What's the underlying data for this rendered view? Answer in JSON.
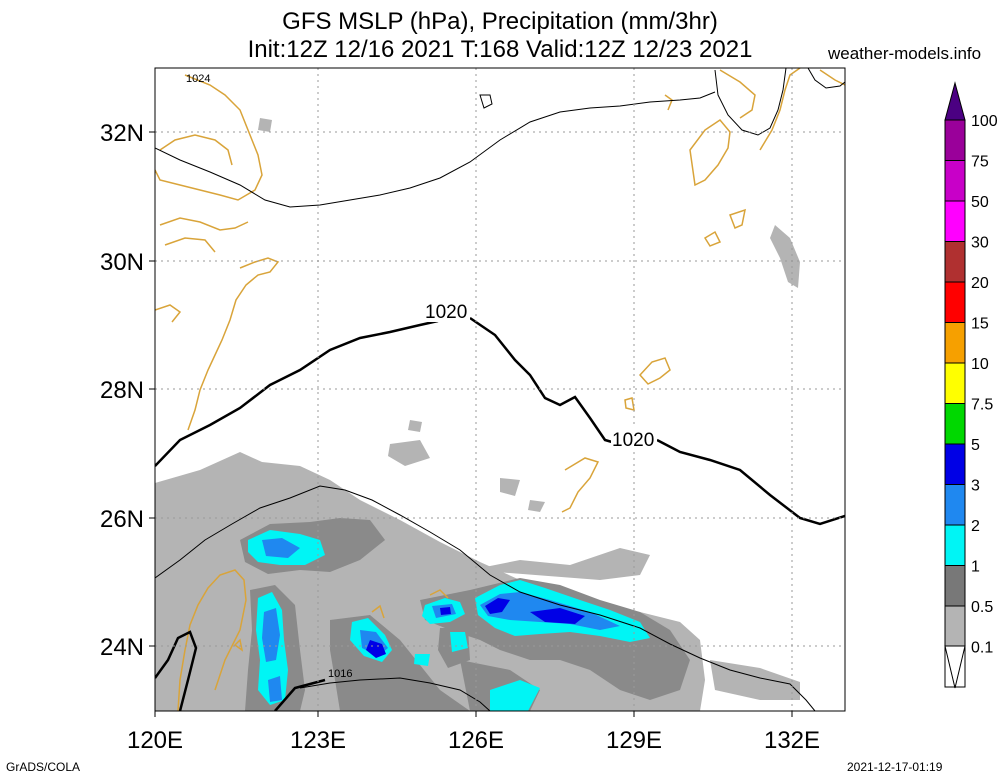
{
  "header": {
    "title_line1": "GFS MSLP (hPa), Precipitation (mm/3hr)",
    "title_line2": "Init:12Z 12/16 2021 T:168 Valid:12Z 12/23 2021",
    "site": "weather-models.info"
  },
  "footer": {
    "left": "GrADS/COLA",
    "right": "2021-12-17-01:19"
  },
  "map": {
    "lon_labels": [
      "120E",
      "123E",
      "126E",
      "129E",
      "132E"
    ],
    "lat_labels": [
      "32N",
      "30N",
      "28N",
      "26N",
      "24N"
    ],
    "isobar_labels": {
      "main_left": "1020",
      "main_right": "1020",
      "top": "1024",
      "bottom": "1016"
    },
    "colors": {
      "coast": "#d9a43a",
      "precip_light": "#b4b4b4",
      "precip_mid": "#8a8a8a",
      "cyan": "#00f5f5",
      "blue1": "#1f88f0",
      "blue2": "#0000e6"
    }
  },
  "colorbar": {
    "labels": [
      "100",
      "75",
      "50",
      "30",
      "20",
      "15",
      "10",
      "7.5",
      "5",
      "3",
      "2",
      "1",
      "0.5",
      "0.1"
    ],
    "colors": [
      "#9a009a",
      "#c800c8",
      "#ff00ff",
      "#b03030",
      "#ff0000",
      "#f6a000",
      "#ffff00",
      "#00d800",
      "#0000e6",
      "#1f88f0",
      "#00f5f5",
      "#787878",
      "#b4b4b4",
      "#ffffff"
    ],
    "top_color": "#4b0082"
  }
}
